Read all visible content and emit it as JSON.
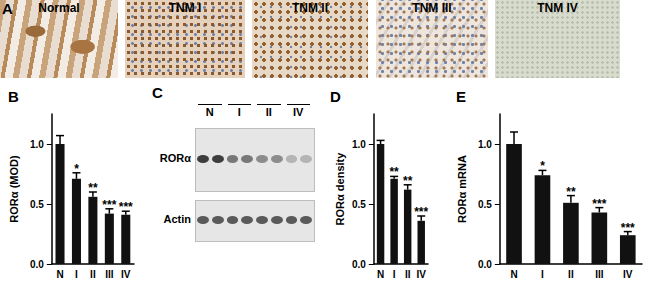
{
  "chart_data": [
    {
      "type": "bar",
      "panel": "B",
      "ylabel": "RORα (MOD)",
      "categories": [
        "N",
        "I",
        "II",
        "III",
        "IV"
      ],
      "values": [
        1.0,
        0.71,
        0.56,
        0.42,
        0.41
      ],
      "errors": [
        0.07,
        0.05,
        0.04,
        0.04,
        0.03
      ],
      "annotations": [
        null,
        "*",
        "**",
        "***",
        "***"
      ],
      "color": "#111111",
      "ylim": [
        0,
        1.25
      ],
      "yticks": [
        {
          "value": 0,
          "label": "0.0"
        },
        {
          "value": 0.5,
          "label": "0.5"
        },
        {
          "value": 1,
          "label": "1.0"
        }
      ],
      "grid": false
    },
    {
      "type": "bar",
      "panel": "D",
      "ylabel": "RORα density",
      "categories": [
        "N",
        "I",
        "II",
        "IV"
      ],
      "values": [
        1.0,
        0.71,
        0.62,
        0.36
      ],
      "errors": [
        0.03,
        0.02,
        0.04,
        0.04
      ],
      "annotations": [
        null,
        "**",
        "**",
        "***"
      ],
      "color": "#111111",
      "ylim": [
        0,
        1.25
      ],
      "yticks": [
        {
          "value": 0,
          "label": "0.0"
        },
        {
          "value": 0.5,
          "label": "0.5"
        },
        {
          "value": 1,
          "label": "1.0"
        }
      ],
      "grid": false
    },
    {
      "type": "bar",
      "panel": "E",
      "ylabel": "RORα mRNA",
      "categories": [
        "N",
        "I",
        "II",
        "III",
        "IV"
      ],
      "values": [
        1.0,
        0.74,
        0.51,
        0.43,
        0.24
      ],
      "errors": [
        0.1,
        0.04,
        0.06,
        0.04,
        0.03
      ],
      "annotations": [
        null,
        "*",
        "**",
        "***",
        "***"
      ],
      "color": "#111111",
      "ylim": [
        0,
        1.25
      ],
      "yticks": [
        {
          "value": 0,
          "label": "0.0"
        },
        {
          "value": 0.5,
          "label": "0.5"
        },
        {
          "value": 1,
          "label": "1.0"
        }
      ],
      "grid": false
    }
  ],
  "panel_a": {
    "panel": "A",
    "images": [
      "Normal",
      "TNM I",
      "TNM II",
      "TNM III",
      "TNM IV"
    ]
  },
  "panel_c": {
    "panel": "C",
    "lanes": [
      "N",
      "I",
      "II",
      "IV"
    ],
    "rows": [
      "RORα",
      "Actin"
    ]
  }
}
